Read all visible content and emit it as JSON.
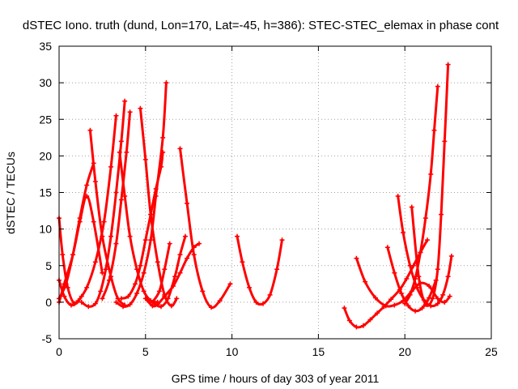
{
  "chart_data": {
    "type": "scatter",
    "title": "dSTEC Iono. truth (dund, Lon=170, Lat=-45, h=386): STEC-STEC_elemax in phase cont",
    "xlabel": "GPS time / hours of day 303 of year 2011",
    "ylabel": "dSTEC  / TECUs",
    "xlim": [
      0,
      25
    ],
    "ylim": [
      -5,
      35
    ],
    "xticks": [
      "0",
      "5",
      "10",
      "15",
      "20",
      "25"
    ],
    "yticks": [
      "-5",
      "0",
      "5",
      "10",
      "15",
      "20",
      "25",
      "30",
      "35"
    ],
    "grid": true,
    "marker": "plus",
    "color": "#ff0000",
    "series": [
      {
        "x": [
          0.0,
          0.2,
          0.5,
          0.9,
          1.3
        ],
        "y": [
          11.5,
          6.5,
          2.0,
          -0.2,
          0.8
        ]
      },
      {
        "x": [
          0.0,
          0.3,
          0.7,
          1.1,
          1.6,
          2.1,
          2.6,
          3.0,
          3.3
        ],
        "y": [
          3.0,
          0.8,
          -0.4,
          0.2,
          2.0,
          5.5,
          11.0,
          18.5,
          25.5
        ]
      },
      {
        "x": [
          0.0,
          0.3,
          0.8,
          1.2,
          1.6,
          2.0,
          2.5
        ],
        "y": [
          0.0,
          2.5,
          6.5,
          11.0,
          14.5,
          11.0,
          4.0
        ]
      },
      {
        "x": [
          0.0,
          0.4,
          0.8,
          1.2,
          1.6,
          2.0
        ],
        "y": [
          0.5,
          2.5,
          6.5,
          11.5,
          16.0,
          19.0
        ]
      },
      {
        "x": [
          1.3,
          1.7,
          2.1,
          2.4,
          2.7,
          3.0,
          3.3,
          3.6,
          3.8
        ],
        "y": [
          0.0,
          -0.6,
          -0.2,
          1.5,
          4.5,
          9.0,
          15.0,
          22.0,
          27.5
        ]
      },
      {
        "x": [
          1.8,
          2.1,
          2.5,
          3.0,
          3.4,
          3.8
        ],
        "y": [
          23.5,
          16.5,
          9.0,
          3.5,
          0.5,
          -0.4
        ]
      },
      {
        "x": [
          2.5,
          2.9,
          3.3,
          3.6,
          3.9,
          4.1
        ],
        "y": [
          0.5,
          3.0,
          8.0,
          14.0,
          20.5,
          26.0
        ]
      },
      {
        "x": [
          3.5,
          3.8,
          4.1,
          4.5,
          4.9,
          5.3,
          5.7
        ],
        "y": [
          20.5,
          14.5,
          9.0,
          4.5,
          1.5,
          0.2,
          0.0
        ]
      },
      {
        "x": [
          3.3,
          3.7,
          4.1,
          4.5,
          4.9,
          5.3,
          5.6,
          6.0,
          6.2
        ],
        "y": [
          0.0,
          -0.6,
          -0.3,
          1.2,
          4.0,
          8.5,
          14.5,
          22.5,
          30.0
        ]
      },
      {
        "x": [
          3.6,
          4.0,
          4.4,
          4.7,
          5.0,
          5.3,
          5.6,
          5.9,
          6.0
        ],
        "y": [
          0.5,
          0.8,
          2.5,
          5.0,
          8.5,
          12.0,
          15.5,
          18.5,
          20.5
        ]
      },
      {
        "x": [
          4.7,
          5.0,
          5.3,
          5.7,
          6.1,
          6.5,
          6.8
        ],
        "y": [
          26.5,
          19.5,
          12.0,
          5.5,
          1.0,
          -0.5,
          0.5
        ]
      },
      {
        "x": [
          5.4,
          5.8,
          6.1,
          6.4
        ],
        "y": [
          0.0,
          1.5,
          4.5,
          8.0
        ]
      },
      {
        "x": [
          5.0,
          5.4,
          5.7,
          6.1,
          6.6,
          7.0,
          7.4,
          7.8,
          8.1
        ],
        "y": [
          0.5,
          -0.5,
          -0.3,
          0.8,
          2.2,
          4.0,
          6.0,
          7.5,
          8.0
        ]
      },
      {
        "x": [
          5.5,
          5.9,
          6.3,
          6.7,
          7.0,
          7.3
        ],
        "y": [
          -0.2,
          -0.6,
          0.5,
          3.5,
          6.5,
          9.0
        ]
      },
      {
        "x": [
          7.0,
          7.4,
          7.8,
          8.3,
          8.8,
          9.3,
          9.9
        ],
        "y": [
          21.0,
          13.5,
          6.5,
          1.5,
          -0.7,
          0.2,
          2.5
        ]
      },
      {
        "x": [
          10.3,
          10.6,
          11.0,
          11.4,
          11.8,
          12.2,
          12.6,
          12.9
        ],
        "y": [
          9.0,
          5.5,
          2.0,
          0.0,
          -0.2,
          1.0,
          4.5,
          8.5
        ]
      },
      {
        "x": [
          16.5,
          16.8,
          17.2,
          17.6,
          18.0,
          18.4,
          18.8,
          19.2,
          19.7,
          20.1,
          20.5,
          20.9,
          21.3
        ],
        "y": [
          -0.8,
          -2.5,
          -3.4,
          -3.2,
          -2.4,
          -1.5,
          -0.6,
          0.4,
          1.7,
          3.2,
          5.0,
          6.8,
          8.5
        ]
      },
      {
        "x": [
          17.2,
          17.7,
          18.3,
          18.9,
          19.4,
          19.9,
          20.4,
          20.9,
          21.4,
          21.9,
          22.3,
          22.6
        ],
        "y": [
          6.0,
          2.8,
          0.6,
          -0.5,
          -0.4,
          0.2,
          1.5,
          2.6,
          2.2,
          0.5,
          0.0,
          0.8
        ]
      },
      {
        "x": [
          19.6,
          19.9,
          20.3,
          20.7,
          21.1,
          21.5,
          21.9,
          22.2,
          22.5,
          22.7
        ],
        "y": [
          14.5,
          9.5,
          5.0,
          2.0,
          0.3,
          -0.5,
          -0.2,
          1.0,
          3.5,
          6.3
        ]
      },
      {
        "x": [
          19.0,
          19.4,
          19.8,
          20.2,
          20.6,
          21.0,
          21.4,
          21.8
        ],
        "y": [
          7.5,
          4.0,
          1.2,
          -0.5,
          -1.2,
          -0.8,
          0.6,
          3.0
        ]
      },
      {
        "x": [
          20.0,
          20.3,
          20.6,
          20.9,
          21.2,
          21.5,
          21.7,
          21.9
        ],
        "y": [
          -0.2,
          1.0,
          3.2,
          6.8,
          11.5,
          17.5,
          23.5,
          29.5
        ]
      },
      {
        "x": [
          20.4,
          20.8,
          21.2,
          21.6,
          21.9,
          22.1,
          22.3,
          22.5
        ],
        "y": [
          13.0,
          3.5,
          -0.3,
          0.5,
          4.5,
          12.0,
          22.0,
          32.5
        ]
      }
    ]
  }
}
